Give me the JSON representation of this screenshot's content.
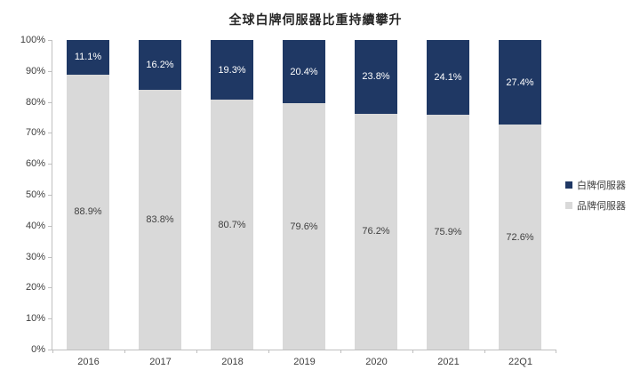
{
  "title": "全球白牌伺服器比重持續攀升",
  "colors": {
    "white_box_series": "#1F3864",
    "brand_series": "#D9D9D9",
    "axis": "#BFBFBF",
    "label_on_dark": "#FFFFFF",
    "label_on_light": "#404040",
    "tick_text": "#404040",
    "title_text": "#262626"
  },
  "legend": {
    "position": "right",
    "items": [
      {
        "label": "白牌伺服器",
        "color": "#1F3864"
      },
      {
        "label": "品牌伺服器",
        "color": "#D9D9D9"
      }
    ]
  },
  "chart_data": {
    "type": "bar",
    "stacked": true,
    "title": "全球白牌伺服器比重持續攀升",
    "categories": [
      "2016",
      "2017",
      "2018",
      "2019",
      "2020",
      "2021",
      "22Q1"
    ],
    "series": [
      {
        "name": "品牌伺服器",
        "color": "#D9D9D9",
        "label_color": "#404040",
        "values": [
          88.9,
          83.8,
          80.7,
          79.6,
          76.2,
          75.9,
          72.6
        ],
        "data_labels": [
          "88.9%",
          "83.8%",
          "80.7%",
          "79.6%",
          "76.2%",
          "75.9%",
          "72.6%"
        ]
      },
      {
        "name": "白牌伺服器",
        "color": "#1F3864",
        "label_color": "#FFFFFF",
        "values": [
          11.1,
          16.2,
          19.3,
          20.4,
          23.8,
          24.1,
          27.4
        ],
        "data_labels": [
          "11.1%",
          "16.2%",
          "19.3%",
          "20.4%",
          "23.8%",
          "24.1%",
          "27.4%"
        ]
      }
    ],
    "xlabel": "",
    "ylabel": "",
    "ylim": [
      0,
      100
    ],
    "y_tick_step": 10,
    "y_tick_labels": [
      "0%",
      "10%",
      "20%",
      "30%",
      "40%",
      "50%",
      "60%",
      "70%",
      "80%",
      "90%",
      "100%"
    ],
    "grid": false,
    "legend_position": "right"
  }
}
